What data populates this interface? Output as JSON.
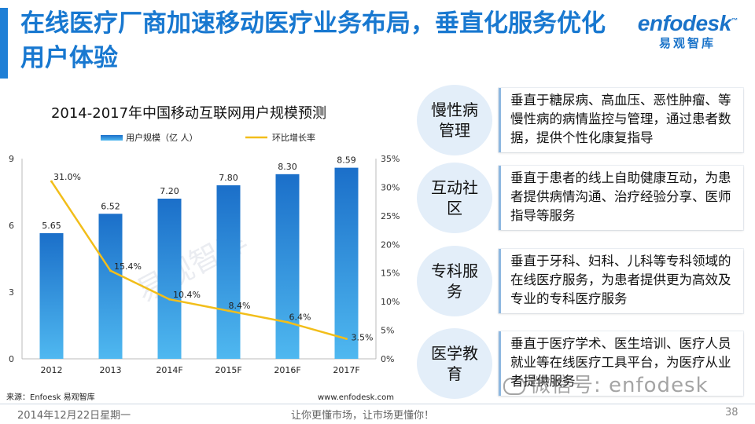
{
  "header": {
    "title": "在线医疗厂商加速移动医疗业务布局，垂直化服务优化用户体验",
    "logo_main": "enfodesk",
    "logo_tm": "™",
    "logo_sub": "易观智库"
  },
  "chart_data": {
    "type": "bar",
    "title": "2014-2017年中国移动互联网用户规模预测",
    "categories": [
      "2012",
      "2013",
      "2014F",
      "2015F",
      "2016F",
      "2017F"
    ],
    "series": [
      {
        "name": "用户规模（亿 人）",
        "type": "bar",
        "axis": "left",
        "values": [
          5.65,
          6.52,
          7.2,
          7.8,
          8.3,
          8.59
        ],
        "labels": [
          "5.65",
          "6.52",
          "7.20",
          "7.80",
          "8.30",
          "8.59"
        ],
        "color": "#2a8fe0"
      },
      {
        "name": "环比增长率",
        "type": "line",
        "axis": "right",
        "values": [
          31.0,
          15.4,
          10.4,
          8.4,
          6.4,
          3.5
        ],
        "labels": [
          "31.0%",
          "15.4%",
          "10.4%",
          "8.4%",
          "6.4%",
          "3.5%"
        ],
        "color": "#f2be1a"
      }
    ],
    "y_left": {
      "min": 0,
      "max": 9,
      "ticks": [
        "0",
        "3",
        "6",
        "9"
      ],
      "tick_values": [
        0,
        3,
        6,
        9
      ]
    },
    "y_right": {
      "min": 0,
      "max": 35,
      "ticks": [
        "0%",
        "5%",
        "10%",
        "15%",
        "20%",
        "25%",
        "30%",
        "35%"
      ],
      "tick_values": [
        0,
        5,
        10,
        15,
        20,
        25,
        30,
        35
      ]
    },
    "legend_position": "top",
    "grid": false,
    "chart_watermark": "易观智库"
  },
  "footer": {
    "source": "来源：Enfoesk 易观智库",
    "website": "www.enfodesk.com",
    "date": "2014年12月22日星期一",
    "slogan": "让你更懂市场，让市场更懂你！",
    "page": "38",
    "watermark": "微信号: enfodesk"
  },
  "services": [
    {
      "name": "慢性病管理",
      "desc": "垂直于糖尿病、高血压、恶性肿瘤、等慢性病的病情监控与管理，通过患者数据，提供个性化康复指导"
    },
    {
      "name": "互动社区",
      "desc": "垂直于患者的线上自助健康互动，为患者提供病情沟通、治疗经验分享、医师指导等服务"
    },
    {
      "name": "专科服务",
      "desc": "垂直于牙科、妇科、儿科等专科领域的在线医疗服务，为患者提供更为高效及专业的专科医疗服务"
    },
    {
      "name": "医学教育",
      "desc": "垂直于医疗学术、医生培训、医疗人员就业等在线医疗工具平台，为医疗从业者提供服务"
    }
  ]
}
